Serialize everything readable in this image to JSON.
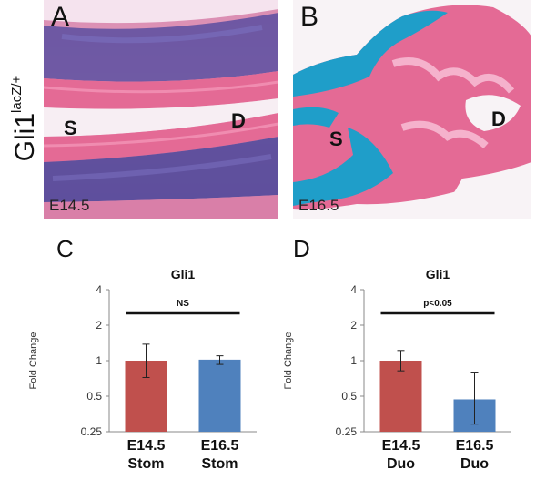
{
  "figure": {
    "gene_label": "Gli1",
    "gene_superscript": "lacZ/+",
    "panel_a": {
      "letter": "A",
      "stage": "E14.5",
      "label_s": "S",
      "label_d": "D"
    },
    "panel_b": {
      "letter": "B",
      "stage": "E16.5",
      "label_s": "S",
      "label_d": "D"
    },
    "panel_c": {
      "letter": "C"
    },
    "panel_d": {
      "letter": "D"
    }
  },
  "colors": {
    "red_bar": "#c0504d",
    "blue_bar": "#4f81bd",
    "stain_blue": "#1f9ec9",
    "stain_pink": "#e46a95",
    "purple": "#5a4ea0"
  },
  "chart_data": [
    {
      "type": "bar",
      "title": "Gli1",
      "ylabel": "Fold Change",
      "yscale": "log2",
      "ylim": [
        0.25,
        4
      ],
      "yticks": [
        0.25,
        0.5,
        1,
        2,
        4
      ],
      "ytick_labels": [
        "0.25",
        "0.5",
        "1",
        "2",
        "4"
      ],
      "categories": [
        "E14.5\nStom",
        "E16.5\nStom"
      ],
      "category_lines": [
        [
          "E14.5",
          "Stom"
        ],
        [
          "E16.5",
          "Stom"
        ]
      ],
      "values": [
        1.0,
        1.02
      ],
      "error_low": [
        0.72,
        0.93
      ],
      "error_high": [
        1.38,
        1.1
      ],
      "bar_colors": [
        "#c0504d",
        "#4f81bd"
      ],
      "annotation": "NS",
      "grid": false
    },
    {
      "type": "bar",
      "title": "Gli1",
      "ylabel": "Fold Change",
      "yscale": "log2",
      "ylim": [
        0.25,
        4
      ],
      "yticks": [
        0.25,
        0.5,
        1,
        2,
        4
      ],
      "ytick_labels": [
        "0.25",
        "0.5",
        "1",
        "2",
        "4"
      ],
      "categories": [
        "E14.5\nDuo",
        "E16.5\nDuo"
      ],
      "category_lines": [
        [
          "E14.5",
          "Duo"
        ],
        [
          "E16.5",
          "Duo"
        ]
      ],
      "values": [
        1.0,
        0.47
      ],
      "error_low": [
        0.82,
        0.29
      ],
      "error_high": [
        1.22,
        0.8
      ],
      "bar_colors": [
        "#c0504d",
        "#4f81bd"
      ],
      "annotation": "p<0.05",
      "grid": false
    }
  ]
}
